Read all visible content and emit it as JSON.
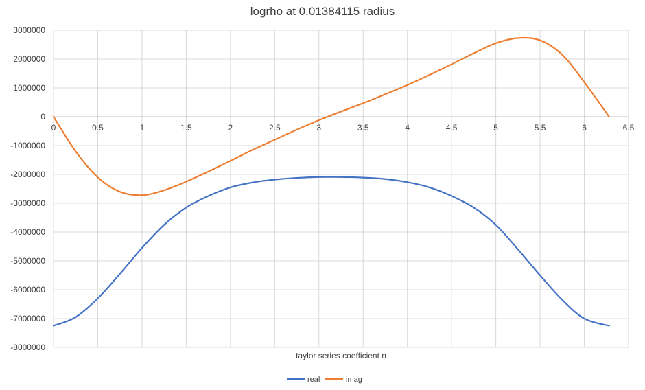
{
  "chart_data": {
    "type": "line",
    "title": "logrho at 0.01384115 radius",
    "xlabel": "taylor series coefficient n",
    "ylabel": "",
    "xlim": [
      0,
      6.5
    ],
    "ylim": [
      -8000000,
      3000000
    ],
    "x_ticks": [
      "0",
      "0.5",
      "1",
      "1.5",
      "2",
      "2.5",
      "3",
      "3.5",
      "4",
      "4.5",
      "5",
      "5.5",
      "6",
      "6.5"
    ],
    "y_ticks": [
      "3000000",
      "2000000",
      "1000000",
      "0",
      "-1000000",
      "-2000000",
      "-3000000",
      "-4000000",
      "-5000000",
      "-6000000",
      "-7000000",
      "-8000000"
    ],
    "grid": true,
    "legend_position": "bottom",
    "series": [
      {
        "name": "real",
        "color": "#4472C4",
        "x": [
          0,
          0.25,
          0.5,
          0.75,
          1,
          1.25,
          1.5,
          1.75,
          2,
          2.25,
          2.5,
          2.75,
          3,
          3.25,
          3.5,
          3.75,
          4,
          4.25,
          4.5,
          4.75,
          5,
          5.25,
          5.5,
          5.75,
          6,
          6.28
        ],
        "y": [
          -7250000,
          -6950000,
          -6300000,
          -5450000,
          -4550000,
          -3750000,
          -3150000,
          -2750000,
          -2450000,
          -2280000,
          -2180000,
          -2120000,
          -2090000,
          -2090000,
          -2110000,
          -2160000,
          -2270000,
          -2450000,
          -2750000,
          -3150000,
          -3750000,
          -4600000,
          -5500000,
          -6350000,
          -7000000,
          -7250000
        ]
      },
      {
        "name": "imag",
        "color": "#ED7D31",
        "x": [
          0,
          0.25,
          0.5,
          0.75,
          1,
          1.25,
          1.5,
          1.75,
          2,
          2.25,
          2.5,
          2.75,
          3,
          3.25,
          3.5,
          3.75,
          4,
          4.25,
          4.5,
          4.75,
          5,
          5.25,
          5.5,
          5.75,
          6,
          6.28
        ],
        "y": [
          0,
          -1200000,
          -2100000,
          -2600000,
          -2720000,
          -2550000,
          -2250000,
          -1900000,
          -1530000,
          -1150000,
          -800000,
          -450000,
          -120000,
          180000,
          470000,
          780000,
          1100000,
          1450000,
          1820000,
          2200000,
          2550000,
          2730000,
          2650000,
          2150000,
          1200000,
          0
        ]
      }
    ]
  }
}
